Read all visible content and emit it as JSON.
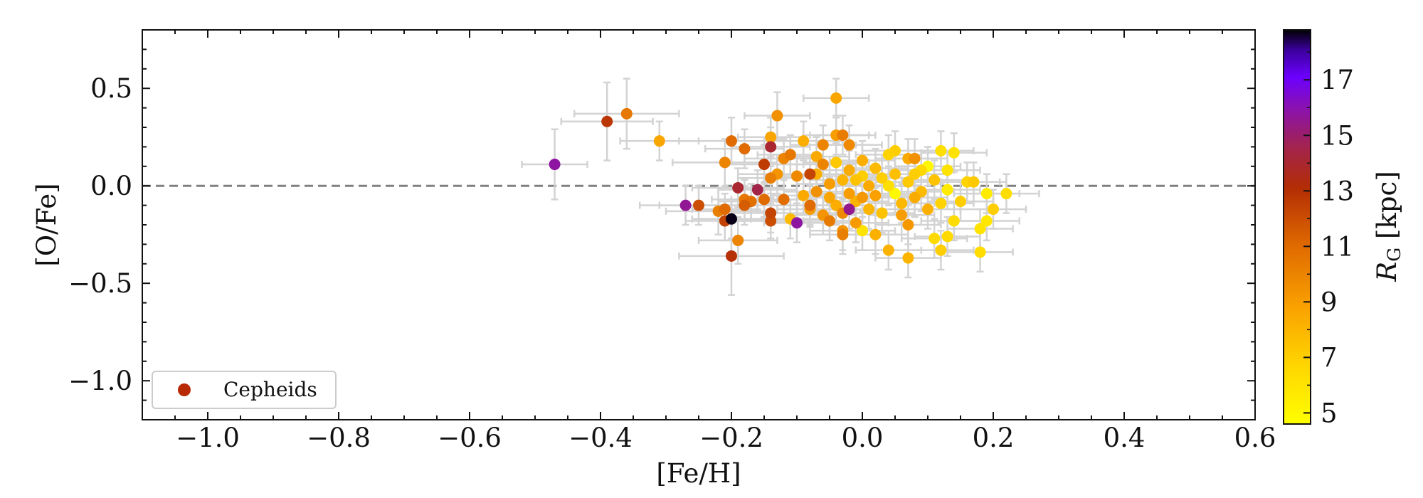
{
  "chart_data": {
    "type": "scatter",
    "title": "",
    "xlabel": "[Fe/H]",
    "ylabel": "[O/Fe]",
    "xlim": [
      -1.1,
      0.6
    ],
    "ylim": [
      -1.2,
      0.8
    ],
    "x_ticks": [
      "−1.0",
      "−0.8",
      "−0.6",
      "−0.4",
      "−0.2",
      "0.0",
      "0.2",
      "0.4",
      "0.6"
    ],
    "x_tick_values": [
      -1.0,
      -0.8,
      -0.6,
      -0.4,
      -0.2,
      0.0,
      0.2,
      0.4,
      0.6
    ],
    "y_ticks": [
      "0.5",
      "0.0",
      "−0.5",
      "−1.0"
    ],
    "y_tick_values": [
      0.5,
      0.0,
      -0.5,
      -1.0
    ],
    "reference_line": {
      "y": 0.0,
      "style": "dashed",
      "color": "#808080"
    },
    "legend": {
      "entries": [
        "Cepheids"
      ],
      "placement": "lower-left",
      "marker_color": "#b72a05"
    },
    "colorbar": {
      "label_main": "R",
      "label_sub": "G",
      "label_unit": " [kpc]",
      "range": [
        4.6,
        18.8
      ],
      "ticks": [
        "5",
        "7",
        "9",
        "11",
        "13",
        "15",
        "17"
      ],
      "tick_values": [
        5,
        7,
        9,
        11,
        13,
        15,
        17
      ],
      "colormap": "gnuplot_r"
    },
    "series": [
      {
        "name": "Cepheids",
        "columns": [
          "feh",
          "ofe",
          "feh_err",
          "ofe_err",
          "rg_kpc"
        ],
        "points": [
          [
            -0.47,
            0.11,
            0.05,
            0.18,
            15.8
          ],
          [
            -0.39,
            0.33,
            0.07,
            0.2,
            12.8
          ],
          [
            -0.36,
            0.37,
            0.08,
            0.18,
            10.5
          ],
          [
            -0.31,
            0.23,
            0.06,
            0.1,
            8.6
          ],
          [
            -0.27,
            -0.1,
            0.07,
            0.1,
            15.6
          ],
          [
            -0.25,
            -0.1,
            0.06,
            0.1,
            12.0
          ],
          [
            -0.22,
            -0.13,
            0.08,
            0.12,
            10.2
          ],
          [
            -0.21,
            0.12,
            0.08,
            0.12,
            10.0
          ],
          [
            -0.21,
            -0.18,
            0.06,
            0.1,
            12.4
          ],
          [
            -0.21,
            -0.12,
            0.05,
            0.08,
            11.0
          ],
          [
            -0.2,
            0.23,
            0.08,
            0.12,
            11.0
          ],
          [
            -0.2,
            -0.17,
            0.06,
            0.1,
            18.7
          ],
          [
            -0.2,
            -0.36,
            0.08,
            0.2,
            13.0
          ],
          [
            -0.19,
            -0.28,
            0.06,
            0.12,
            10.0
          ],
          [
            -0.19,
            -0.01,
            0.07,
            0.1,
            14.0
          ],
          [
            -0.18,
            0.19,
            0.06,
            0.1,
            11.0
          ],
          [
            -0.18,
            -0.07,
            0.05,
            0.1,
            10.5
          ],
          [
            -0.18,
            -0.1,
            0.07,
            0.1,
            11.5
          ],
          [
            -0.17,
            -0.08,
            0.05,
            0.09,
            10.8
          ],
          [
            -0.16,
            -0.02,
            0.06,
            0.1,
            14.5
          ],
          [
            -0.15,
            -0.07,
            0.05,
            0.09,
            11.0
          ],
          [
            -0.15,
            0.11,
            0.06,
            0.1,
            12.6
          ],
          [
            -0.14,
            0.25,
            0.05,
            0.1,
            8.7
          ],
          [
            -0.14,
            -0.14,
            0.06,
            0.1,
            12.3
          ],
          [
            -0.14,
            0.2,
            0.06,
            0.1,
            14.0
          ],
          [
            -0.14,
            0.04,
            0.05,
            0.1,
            10.2
          ],
          [
            -0.14,
            -0.18,
            0.05,
            0.09,
            12.0
          ],
          [
            -0.13,
            0.36,
            0.05,
            0.12,
            9.5
          ],
          [
            -0.13,
            0.06,
            0.06,
            0.1,
            9.3
          ],
          [
            -0.12,
            -0.07,
            0.05,
            0.1,
            10.9
          ],
          [
            -0.12,
            0.14,
            0.06,
            0.1,
            10.0
          ],
          [
            -0.11,
            -0.17,
            0.06,
            0.1,
            7.8
          ],
          [
            -0.11,
            0.16,
            0.05,
            0.1,
            10.5
          ],
          [
            -0.1,
            -0.19,
            0.05,
            0.1,
            15.8
          ],
          [
            -0.1,
            0.05,
            0.05,
            0.1,
            9.8
          ],
          [
            -0.09,
            0.23,
            0.06,
            0.1,
            8.3
          ],
          [
            -0.09,
            -0.05,
            0.05,
            0.1,
            8.5
          ],
          [
            -0.08,
            0.06,
            0.05,
            0.1,
            12.3
          ],
          [
            -0.08,
            -0.1,
            0.06,
            0.1,
            11.0
          ],
          [
            -0.08,
            -0.12,
            0.05,
            0.09,
            9.0
          ],
          [
            -0.07,
            -0.03,
            0.05,
            0.1,
            9.5
          ],
          [
            -0.07,
            0.15,
            0.05,
            0.1,
            8.5
          ],
          [
            -0.07,
            0.06,
            0.06,
            0.1,
            8.2
          ],
          [
            -0.06,
            0.21,
            0.05,
            0.1,
            10.0
          ],
          [
            -0.06,
            -0.15,
            0.05,
            0.1,
            9.4
          ],
          [
            -0.06,
            0.11,
            0.05,
            0.1,
            10.0
          ],
          [
            -0.05,
            -0.06,
            0.05,
            0.1,
            8.6
          ],
          [
            -0.05,
            -0.18,
            0.05,
            0.1,
            10.4
          ],
          [
            -0.05,
            0.01,
            0.05,
            0.1,
            9.0
          ],
          [
            -0.04,
            0.26,
            0.05,
            0.1,
            9.0
          ],
          [
            -0.04,
            0.45,
            0.05,
            0.1,
            8.6
          ],
          [
            -0.04,
            0.12,
            0.05,
            0.1,
            7.2
          ],
          [
            -0.04,
            -0.1,
            0.05,
            0.1,
            8.3
          ],
          [
            -0.03,
            0.03,
            0.05,
            0.1,
            8.0
          ],
          [
            -0.03,
            0.26,
            0.05,
            0.1,
            10.3
          ],
          [
            -0.03,
            -0.14,
            0.05,
            0.1,
            9.8
          ],
          [
            -0.03,
            -0.25,
            0.05,
            0.1,
            10.2
          ],
          [
            -0.03,
            -0.23,
            0.05,
            0.1,
            9.4
          ],
          [
            -0.02,
            0.08,
            0.05,
            0.1,
            8.4
          ],
          [
            -0.02,
            -0.12,
            0.05,
            0.1,
            15.5
          ],
          [
            -0.02,
            -0.04,
            0.05,
            0.1,
            9.0
          ],
          [
            -0.02,
            0.21,
            0.05,
            0.1,
            9.8
          ],
          [
            -0.01,
            0.03,
            0.05,
            0.1,
            7.5
          ],
          [
            -0.01,
            -0.19,
            0.05,
            0.1,
            9.1
          ],
          [
            -0.01,
            -0.08,
            0.05,
            0.1,
            8.1
          ],
          [
            0.0,
            -0.23,
            0.05,
            0.1,
            6.0
          ],
          [
            0.0,
            0.13,
            0.05,
            0.1,
            8.3
          ],
          [
            0.0,
            0.05,
            0.05,
            0.1,
            7.0
          ],
          [
            0.0,
            -0.06,
            0.05,
            0.1,
            9.2
          ],
          [
            0.01,
            0.0,
            0.05,
            0.1,
            8.5
          ],
          [
            0.01,
            -0.12,
            0.05,
            0.1,
            8.0
          ],
          [
            0.02,
            -0.25,
            0.05,
            0.1,
            8.2
          ],
          [
            0.02,
            0.09,
            0.05,
            0.1,
            7.8
          ],
          [
            0.02,
            -0.05,
            0.05,
            0.1,
            8.8
          ],
          [
            0.03,
            0.04,
            0.05,
            0.1,
            7.0
          ],
          [
            0.03,
            -0.14,
            0.05,
            0.1,
            7.5
          ],
          [
            0.04,
            -0.33,
            0.05,
            0.1,
            8.1
          ],
          [
            0.04,
            0.16,
            0.05,
            0.1,
            6.8
          ],
          [
            0.04,
            0.0,
            0.05,
            0.1,
            6.2
          ],
          [
            0.05,
            -0.04,
            0.05,
            0.1,
            4.9
          ],
          [
            0.05,
            0.18,
            0.05,
            0.1,
            7.0
          ],
          [
            0.05,
            0.06,
            0.05,
            0.1,
            7.6
          ],
          [
            0.06,
            -0.15,
            0.05,
            0.1,
            9.0
          ],
          [
            0.06,
            -0.09,
            0.05,
            0.1,
            7.9
          ],
          [
            0.07,
            0.14,
            0.05,
            0.1,
            8.5
          ],
          [
            0.07,
            -0.37,
            0.05,
            0.1,
            8.0
          ],
          [
            0.07,
            0.02,
            0.05,
            0.1,
            7.2
          ],
          [
            0.07,
            -0.2,
            0.05,
            0.1,
            9.2
          ],
          [
            0.08,
            0.06,
            0.05,
            0.1,
            7.0
          ],
          [
            0.08,
            0.14,
            0.05,
            0.1,
            9.5
          ],
          [
            0.08,
            -0.06,
            0.05,
            0.1,
            8.4
          ],
          [
            0.09,
            -0.03,
            0.05,
            0.1,
            7.8
          ],
          [
            0.09,
            0.08,
            0.05,
            0.1,
            6.6
          ],
          [
            0.1,
            0.1,
            0.05,
            0.1,
            5.0
          ],
          [
            0.1,
            -0.12,
            0.05,
            0.1,
            8.2
          ],
          [
            0.11,
            0.03,
            0.05,
            0.1,
            7.5
          ],
          [
            0.11,
            -0.27,
            0.05,
            0.1,
            6.5
          ],
          [
            0.12,
            -0.09,
            0.05,
            0.1,
            6.8
          ],
          [
            0.12,
            0.18,
            0.05,
            0.1,
            6.2
          ],
          [
            0.12,
            -0.33,
            0.05,
            0.1,
            7.0
          ],
          [
            0.13,
            -0.02,
            0.05,
            0.1,
            5.6
          ],
          [
            0.13,
            0.08,
            0.05,
            0.1,
            6.0
          ],
          [
            0.13,
            -0.26,
            0.05,
            0.1,
            6.5
          ],
          [
            0.14,
            0.17,
            0.05,
            0.1,
            6.0
          ],
          [
            0.14,
            -0.18,
            0.05,
            0.1,
            6.4
          ],
          [
            0.15,
            -0.08,
            0.05,
            0.1,
            7.0
          ],
          [
            0.16,
            0.02,
            0.05,
            0.1,
            6.8
          ],
          [
            0.17,
            0.02,
            0.05,
            0.1,
            7.2
          ],
          [
            0.18,
            -0.22,
            0.05,
            0.1,
            6.0
          ],
          [
            0.18,
            -0.34,
            0.05,
            0.1,
            6.3
          ],
          [
            0.19,
            -0.18,
            0.05,
            0.1,
            5.8
          ],
          [
            0.19,
            -0.04,
            0.05,
            0.1,
            5.6
          ],
          [
            0.2,
            -0.12,
            0.05,
            0.1,
            7.0
          ],
          [
            0.22,
            -0.04,
            0.05,
            0.1,
            6.3
          ]
        ]
      }
    ]
  }
}
